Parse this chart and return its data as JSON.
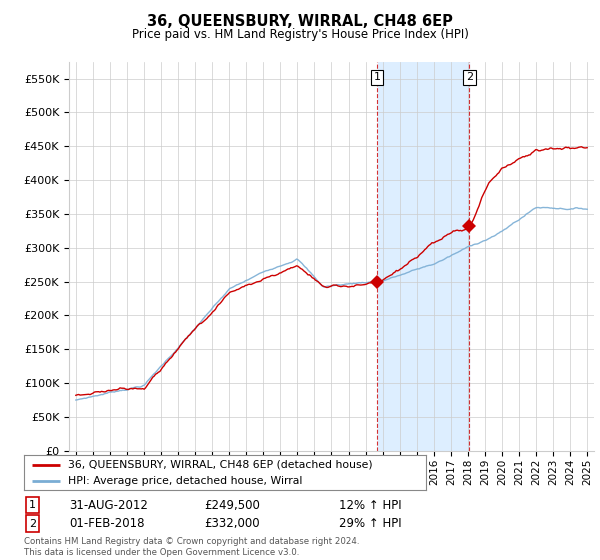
{
  "title": "36, QUEENSBURY, WIRRAL, CH48 6EP",
  "subtitle": "Price paid vs. HM Land Registry's House Price Index (HPI)",
  "legend_line1": "36, QUEENSBURY, WIRRAL, CH48 6EP (detached house)",
  "legend_line2": "HPI: Average price, detached house, Wirral",
  "annotation1_label": "1",
  "annotation1_date": "31-AUG-2012",
  "annotation1_price": "£249,500",
  "annotation1_hpi": "12% ↑ HPI",
  "annotation2_label": "2",
  "annotation2_date": "01-FEB-2018",
  "annotation2_price": "£332,000",
  "annotation2_hpi": "29% ↑ HPI",
  "footer1": "Contains HM Land Registry data © Crown copyright and database right 2024.",
  "footer2": "This data is licensed under the Open Government Licence v3.0.",
  "red_color": "#cc0000",
  "blue_color": "#7aadd4",
  "shaded_color": "#ddeeff",
  "background_color": "#ffffff",
  "grid_color": "#cccccc",
  "ylim": [
    0,
    575000
  ],
  "yticks": [
    0,
    50000,
    100000,
    150000,
    200000,
    250000,
    300000,
    350000,
    400000,
    450000,
    500000,
    550000
  ],
  "sale1_year": 2012.67,
  "sale1_value": 249500,
  "sale2_year": 2018.08,
  "sale2_value": 332000,
  "shade_start": 2012.67,
  "shade_end": 2018.08,
  "xmin": 1994.6,
  "xmax": 2025.4
}
